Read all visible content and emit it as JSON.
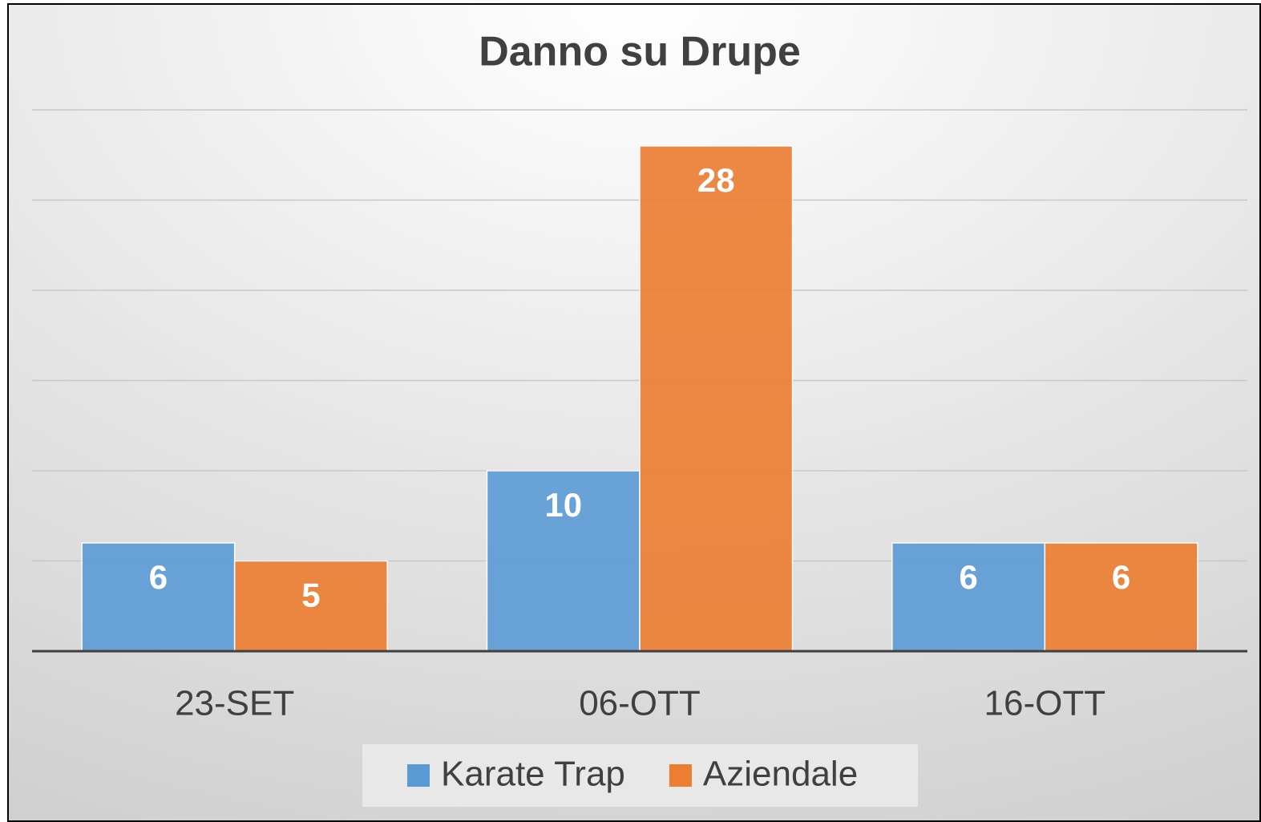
{
  "chart_data": {
    "type": "bar",
    "title": "Danno su Drupe",
    "categories": [
      "23-SET",
      "06-OTT",
      "16-OTT"
    ],
    "series": [
      {
        "name": "Karate Trap",
        "color": "#5b9bd5",
        "values": [
          6,
          10,
          6
        ]
      },
      {
        "name": "Aziendale",
        "color": "#ed7d31",
        "values": [
          5,
          28,
          6
        ]
      }
    ],
    "ylim": [
      0,
      30
    ],
    "yticks": [
      0,
      5,
      10,
      15,
      20,
      25,
      30
    ],
    "grid": true,
    "legend": "bottom"
  }
}
